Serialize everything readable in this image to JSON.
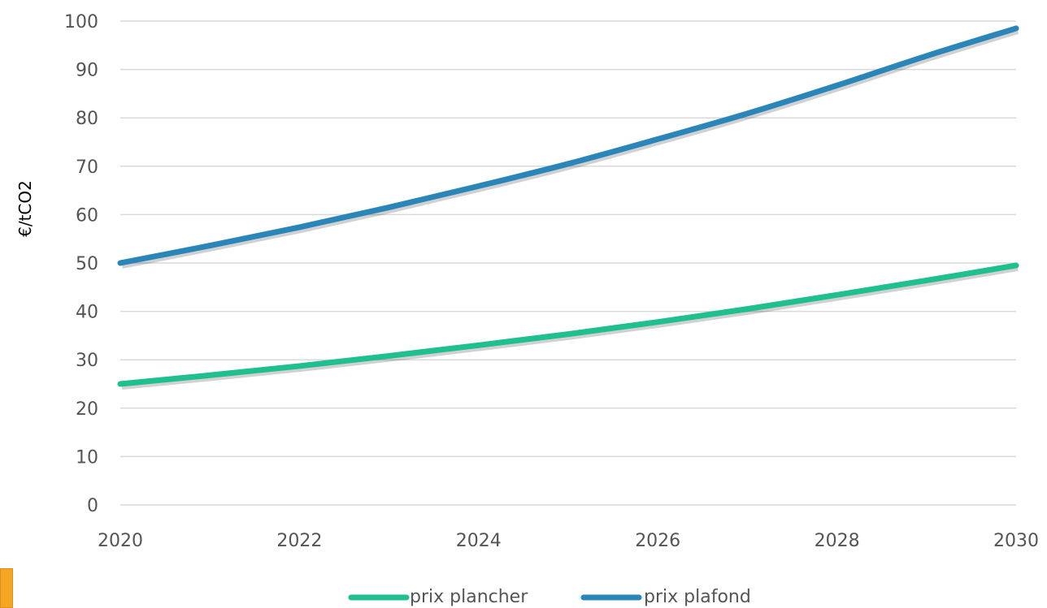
{
  "chart_data": {
    "type": "line",
    "title": "",
    "xlabel": "",
    "ylabel": "€/tCO2",
    "x": [
      2020,
      2021,
      2022,
      2023,
      2024,
      2025,
      2026,
      2027,
      2028,
      2029,
      2030
    ],
    "x_ticks": [
      "2020",
      "2022",
      "2024",
      "2026",
      "2028",
      "2030"
    ],
    "y_ticks": [
      "0",
      "10",
      "20",
      "30",
      "40",
      "50",
      "60",
      "70",
      "80",
      "90",
      "100"
    ],
    "xlim": [
      2020,
      2030
    ],
    "ylim": [
      0,
      100
    ],
    "grid": true,
    "legend_position": "bottom",
    "series": [
      {
        "name": "prix plancher",
        "color": "#1fbf8f",
        "values": [
          25,
          26.8,
          28.7,
          30.8,
          33.0,
          35.3,
          37.8,
          40.5,
          43.4,
          46.4,
          49.5
        ]
      },
      {
        "name": "prix plafond",
        "color": "#2a86b8",
        "values": [
          50,
          53.6,
          57.4,
          61.5,
          65.9,
          70.5,
          75.6,
          80.9,
          86.7,
          92.8,
          98.5
        ]
      }
    ]
  },
  "colors": {
    "grid": "#d9d9d9",
    "corner_mark": "#f5a623"
  }
}
